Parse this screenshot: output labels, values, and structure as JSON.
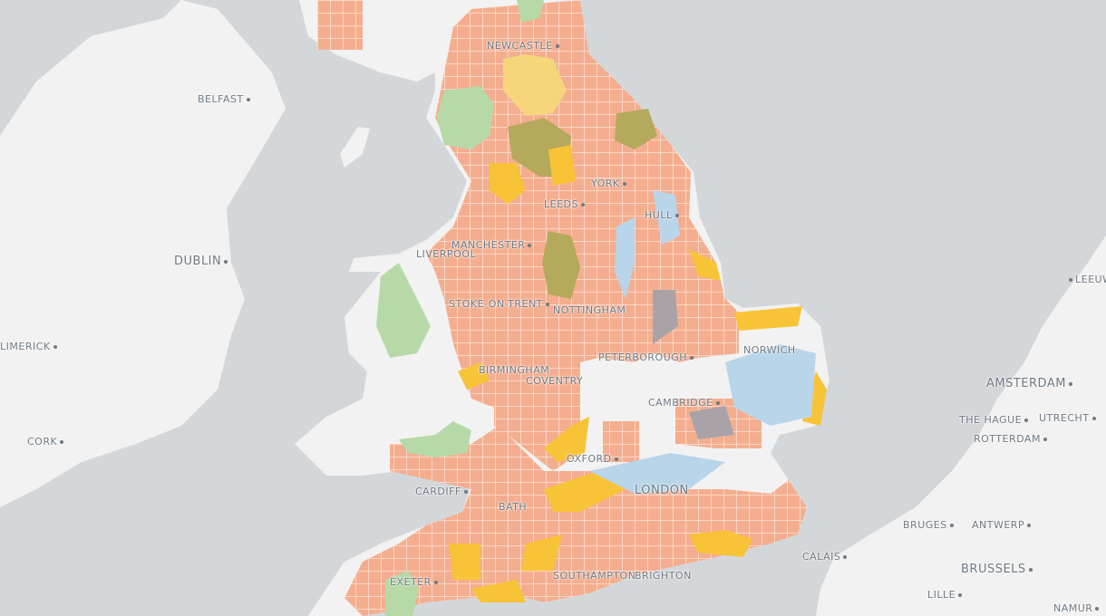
{
  "colors": {
    "sea": "#d4d7da",
    "land": "#f2f2f2",
    "grid_squares": "#f4ae8f",
    "yellow_zone": "#f7c437",
    "green_zone": "#b7d9a8",
    "olive_zone": "#b5a95c",
    "blue_zone": "#b9d5ea",
    "grey_zone": "#a9a3a8"
  },
  "labels": {
    "belfast": "BELFAST",
    "dublin": "DUBLIN",
    "cork": "CORK",
    "limerick": "LIMERICK",
    "newcastle": "NEWCASTLE",
    "leeds": "LEEDS",
    "york": "YORK",
    "hull": "HULL",
    "manchester": "MANCHESTER",
    "liverpool": "LIVERPOOL",
    "stoke": "STOKE-ON-TRENT",
    "nottingham": "NOTTINGHAM",
    "birmingham": "BIRMINGHAM",
    "coventry": "COVENTRY",
    "peterborough": "PETERBOROUGH",
    "norwich": "NORWICH",
    "cambridge": "CAMBRIDGE",
    "oxford": "OXFORD",
    "cardiff": "CARDIFF",
    "bath": "BATH",
    "london": "LONDON",
    "exeter": "EXETER",
    "southampton": "SOUTHAMPTON",
    "brighton": "BRIGHTON",
    "calais": "CALAIS",
    "amsterdam": "AMSTERDAM",
    "the_hague": "THE HAGUE",
    "utrecht": "UTRECHT",
    "rotterdam": "ROTTERDAM",
    "bruges": "BRUGES",
    "antwerp": "ANTWERP",
    "brussels": "BRUSSELS",
    "lille": "LILLE",
    "namur": "NAMUR",
    "leeuwarden": "LEEUWA"
  }
}
